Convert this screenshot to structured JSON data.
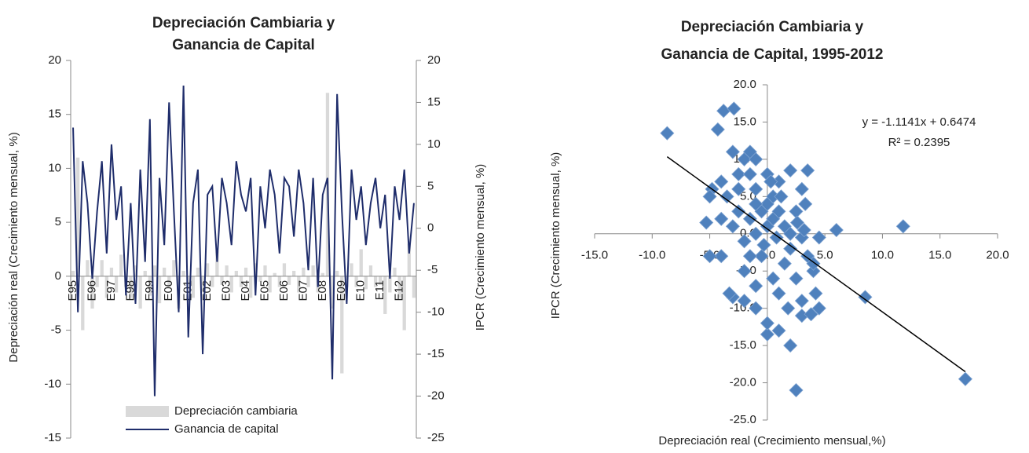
{
  "chart_data": [
    {
      "type": "combo",
      "title": "Depreciación Cambiaria y",
      "subtitle": "Ganancia de Capital",
      "y_label": "Depreciación real (Crecimiento mensual, %)",
      "y2_label": "IPCR (Crecimiento mensual, %)",
      "categories": [
        "E95",
        null,
        null,
        null,
        "E96",
        null,
        null,
        null,
        "E97",
        null,
        null,
        null,
        "E98",
        null,
        null,
        null,
        "E99",
        null,
        null,
        null,
        "E00",
        null,
        null,
        null,
        "E01",
        null,
        null,
        null,
        "E02",
        null,
        null,
        null,
        "E03",
        null,
        null,
        null,
        "E04",
        null,
        null,
        null,
        "E05",
        null,
        null,
        null,
        "E06",
        null,
        null,
        null,
        "E07",
        null,
        null,
        null,
        "E08",
        null,
        null,
        null,
        "E09",
        null,
        null,
        null,
        "E10",
        null,
        null,
        null,
        "E11",
        null,
        null,
        null,
        "E12",
        null,
        null,
        null
      ],
      "ylim": [
        -15,
        20
      ],
      "yticks": [
        -15,
        -10,
        -5,
        0,
        5,
        10,
        15,
        20
      ],
      "y2lim": [
        -25,
        20
      ],
      "y2ticks": [
        -25,
        -20,
        -15,
        -10,
        -5,
        0,
        5,
        10,
        15,
        20
      ],
      "legend": "bottom",
      "series": [
        {
          "name": "Depreciación cambiaria",
          "kind": "bar",
          "color": "#d9d9d9",
          "values": [
            0.5,
            11,
            -5,
            1.5,
            -3,
            -1,
            1.5,
            -2,
            0.8,
            -1.5,
            2,
            -1,
            -2,
            1,
            -3,
            0.5,
            -1.8,
            1,
            -2.5,
            0.8,
            -1,
            1.5,
            -3,
            0.5,
            -1,
            -2,
            0.8,
            -1.5,
            1.2,
            -1,
            2.3,
            -0.8,
            1,
            -1.5,
            0.5,
            -1,
            0.8,
            -2,
            1.2,
            -0.5,
            1,
            -1.5,
            0.3,
            -1,
            1.2,
            -0.8,
            0.5,
            -1.5,
            0.8,
            -1,
            1,
            -1.5,
            0.3,
            17,
            -3,
            0.5,
            -9,
            -1,
            1.2,
            -1,
            2.5,
            -1.2,
            1,
            -1,
            -0.8,
            -3.5,
            -1.5,
            0.8,
            -2,
            -5,
            3,
            -2
          ]
        },
        {
          "name": "Ganancia de capital",
          "kind": "line",
          "axis": "y2",
          "color": "#1f2d6b",
          "values": [
            12,
            -10,
            8,
            3,
            -6,
            2,
            8,
            -3,
            10,
            1,
            5,
            -8,
            3,
            -9,
            7,
            -4,
            13,
            -20,
            6,
            -2,
            15,
            2,
            -10,
            17,
            -13,
            3,
            7,
            -15,
            4,
            5,
            -4,
            6,
            3,
            -2,
            8,
            4,
            2,
            6,
            -8,
            5,
            0,
            7,
            4,
            -3,
            6,
            5,
            -1,
            7,
            3,
            -5,
            6,
            -7,
            4,
            6,
            -18,
            16,
            2,
            -9,
            7,
            1,
            5,
            -2,
            3,
            6,
            0,
            4,
            -6,
            5,
            1,
            7,
            -3,
            3
          ]
        }
      ]
    },
    {
      "type": "scatter",
      "title": "Depreciación Cambiaria y",
      "subtitle": "Ganancia de Capital, 1995-2012",
      "x_label": "Depreciación real (Crecimiento mensual,%)",
      "y_label": "IPCR (Crecimiento mensual, %)",
      "xlim": [
        -15,
        20
      ],
      "xticks": [
        {
          "value": -15,
          "label": "-15.0"
        },
        {
          "value": -10,
          "label": "-10.0"
        },
        {
          "value": -5,
          "label": "-5.0"
        },
        {
          "value": 0,
          "label": "0.0"
        },
        {
          "value": 5,
          "label": "5.0"
        },
        {
          "value": 10,
          "label": "10.0"
        },
        {
          "value": 15,
          "label": "15.0"
        },
        {
          "value": 20,
          "label": "20.0"
        }
      ],
      "ylim": [
        -25,
        20
      ],
      "yticks": [
        {
          "value": -25,
          "label": "-25.0"
        },
        {
          "value": -20,
          "label": "-20.0"
        },
        {
          "value": -15,
          "label": "-15.0"
        },
        {
          "value": -10,
          "label": "-10.0"
        },
        {
          "value": -5,
          "label": "-5.0"
        },
        {
          "value": 0,
          "label": "0.0"
        },
        {
          "value": 5,
          "label": "5.0"
        },
        {
          "value": 10,
          "label": "10.0"
        },
        {
          "value": 15,
          "label": "15.0"
        },
        {
          "value": 20,
          "label": "20.0"
        }
      ],
      "trendline": {
        "slope": -1.1141,
        "intercept": 0.6474,
        "color": "#000000",
        "label": "y = -1.1141x + 0.6474",
        "r2_label": "R² = 0.2395"
      },
      "series": [
        {
          "color": "#4f81bd",
          "x": [
            -8.7,
            -5.3,
            -4.3,
            -3.8,
            -2.9,
            -1.5,
            -3,
            -2,
            -1,
            -4,
            -3.5,
            -4.8,
            -5,
            -2.5,
            -1.5,
            0,
            1,
            2,
            3.5,
            3,
            3.3,
            2.5,
            4.5,
            6,
            11.8,
            8.5,
            17.2,
            3.5,
            4,
            4.2,
            4.5,
            3,
            3.8,
            2,
            2.5,
            1,
            1,
            0,
            -1,
            -1,
            -2,
            -3,
            -4,
            -5,
            -3.3,
            0.5,
            1.5,
            2,
            -0.5,
            -2,
            -1,
            0,
            0.5,
            -0.5,
            0,
            0.5,
            -1,
            1,
            1.5,
            -1.5,
            -2.5,
            -3,
            -0.3,
            0.8,
            2,
            3,
            4,
            2.5,
            3,
            1.8,
            0,
            -2,
            -1.5,
            -4,
            -2.5,
            -1,
            0.3,
            1.2,
            2.6,
            3.2
          ],
          "values": [
            13.5,
            1.5,
            14,
            16.5,
            16.8,
            11,
            11,
            10,
            10,
            7,
            5,
            6,
            5,
            8,
            8,
            8,
            7,
            8.5,
            8.5,
            6,
            4,
            3,
            -0.5,
            0.5,
            1,
            -8.5,
            -19.5,
            -3,
            -5,
            -8,
            -10,
            -11,
            -10.8,
            -15,
            -21,
            -8,
            -13,
            -13.5,
            -10,
            -7,
            -9,
            -8.5,
            -3,
            -3,
            -8,
            -6,
            -4,
            -2,
            -3,
            -1,
            0,
            1,
            2,
            3,
            4,
            5,
            6,
            3,
            1,
            2,
            3,
            1,
            -1.5,
            -0.5,
            0,
            -0.5,
            -4,
            -6,
            -9,
            -10,
            -12,
            -5,
            -3,
            2,
            6,
            4,
            7,
            5,
            1.5,
            0.5
          ]
        }
      ]
    }
  ]
}
